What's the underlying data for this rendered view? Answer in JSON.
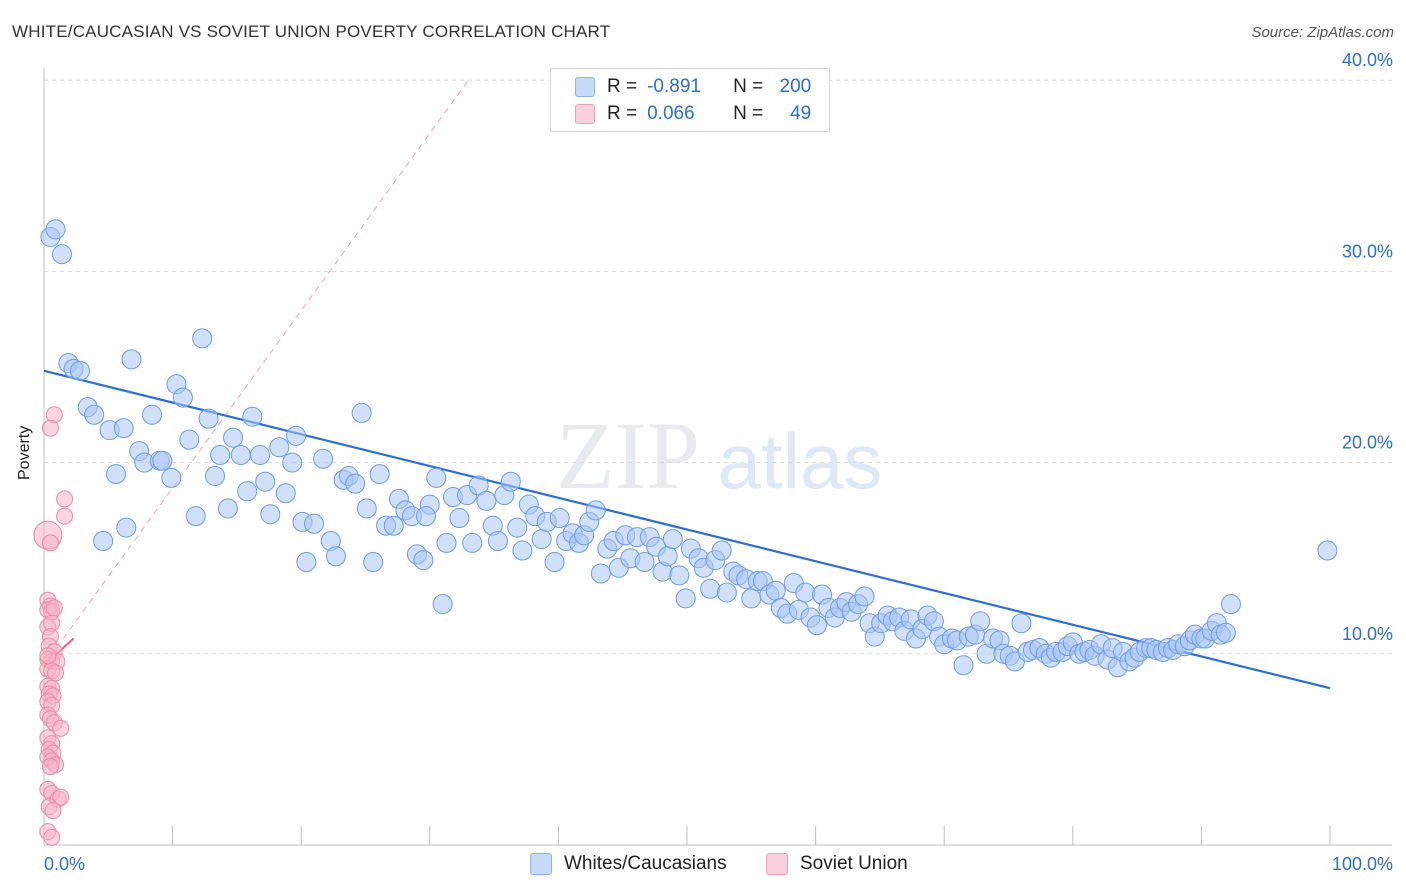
{
  "title": "WHITE/CAUCASIAN VS SOVIET UNION POVERTY CORRELATION CHART",
  "source": "Source: ZipAtlas.com",
  "watermark": {
    "left": "ZIP",
    "right": "atlas"
  },
  "legend": {
    "rows": [
      {
        "r_label": "R =",
        "r_value": "-0.891",
        "n_label": "N =",
        "n_value": "200",
        "color": "#a9c6f2"
      },
      {
        "r_label": "R =",
        "r_value": "0.066",
        "n_label": "N =",
        "n_value": "49",
        "color": "#f6b3c7"
      }
    ]
  },
  "bottom_legend": [
    {
      "label": "Whites/Caucasians",
      "color": "#a9c6f2"
    },
    {
      "label": "Soviet Union",
      "color": "#f6b3c7"
    }
  ],
  "chart_data": {
    "type": "scatter",
    "ylabel": "Poverty",
    "xlim": [
      0,
      100
    ],
    "ylim": [
      0,
      40
    ],
    "x_tick_labels": [
      "0.0%",
      "100.0%"
    ],
    "y_tick_labels": [
      {
        "value": 10,
        "label": "10.0%"
      },
      {
        "value": 20,
        "label": "20.0%"
      },
      {
        "value": 30,
        "label": "30.0%"
      },
      {
        "value": 40,
        "label": "40.0%"
      }
    ],
    "grid": true,
    "colors": {
      "blue": "#2f6fd0",
      "blue_fill": "#a9c6f2",
      "pink": "#ee5f8c",
      "pink_fill": "#f6b3c7",
      "tick_text": "#2f6fd0"
    },
    "series": [
      {
        "name": "Whites/Caucasians",
        "points": [
          [
            0.5,
            31.8
          ],
          [
            0.9,
            32.2
          ],
          [
            1.4,
            30.9
          ],
          [
            1.9,
            25.2
          ],
          [
            2.3,
            24.9
          ],
          [
            2.8,
            24.8
          ],
          [
            3.4,
            22.9
          ],
          [
            3.9,
            22.5
          ],
          [
            4.6,
            15.9
          ],
          [
            5.1,
            21.7
          ],
          [
            5.6,
            19.4
          ],
          [
            6.2,
            21.8
          ],
          [
            6.4,
            16.6
          ],
          [
            6.8,
            25.4
          ],
          [
            7.4,
            20.6
          ],
          [
            7.8,
            20.0
          ],
          [
            8.4,
            22.5
          ],
          [
            9.0,
            20.1
          ],
          [
            9.2,
            20.1
          ],
          [
            9.9,
            19.2
          ],
          [
            10.3,
            24.1
          ],
          [
            10.8,
            23.4
          ],
          [
            11.3,
            21.2
          ],
          [
            11.8,
            17.2
          ],
          [
            12.3,
            26.5
          ],
          [
            12.8,
            22.3
          ],
          [
            13.3,
            19.3
          ],
          [
            13.7,
            20.4
          ],
          [
            14.3,
            17.6
          ],
          [
            14.7,
            21.3
          ],
          [
            15.3,
            20.4
          ],
          [
            15.8,
            18.5
          ],
          [
            16.2,
            22.4
          ],
          [
            16.8,
            20.4
          ],
          [
            17.2,
            19.0
          ],
          [
            17.6,
            17.3
          ],
          [
            18.3,
            20.8
          ],
          [
            18.8,
            18.4
          ],
          [
            19.3,
            20.0
          ],
          [
            19.6,
            21.4
          ],
          [
            20.1,
            16.9
          ],
          [
            20.4,
            14.8
          ],
          [
            21.0,
            16.8
          ],
          [
            21.7,
            20.2
          ],
          [
            22.3,
            15.9
          ],
          [
            22.7,
            15.1
          ],
          [
            23.3,
            19.1
          ],
          [
            23.7,
            19.3
          ],
          [
            24.2,
            18.9
          ],
          [
            24.7,
            22.6
          ],
          [
            25.1,
            17.6
          ],
          [
            25.6,
            14.8
          ],
          [
            26.1,
            19.4
          ],
          [
            26.6,
            16.7
          ],
          [
            27.2,
            16.7
          ],
          [
            27.6,
            18.1
          ],
          [
            28.1,
            17.5
          ],
          [
            28.6,
            17.2
          ],
          [
            29.0,
            15.2
          ],
          [
            29.5,
            14.9
          ],
          [
            30.0,
            17.8
          ],
          [
            30.5,
            19.2
          ],
          [
            31.0,
            12.6
          ],
          [
            31.3,
            15.8
          ],
          [
            31.8,
            18.2
          ],
          [
            32.3,
            17.1
          ],
          [
            32.9,
            18.3
          ],
          [
            33.3,
            15.8
          ],
          [
            33.8,
            18.8
          ],
          [
            34.4,
            18.0
          ],
          [
            34.9,
            16.7
          ],
          [
            35.3,
            15.9
          ],
          [
            35.8,
            18.3
          ],
          [
            36.3,
            19.0
          ],
          [
            36.8,
            16.6
          ],
          [
            37.2,
            15.4
          ],
          [
            37.7,
            17.8
          ],
          [
            38.2,
            17.2
          ],
          [
            38.7,
            16.0
          ],
          [
            39.1,
            16.9
          ],
          [
            39.7,
            14.8
          ],
          [
            40.1,
            17.1
          ],
          [
            40.6,
            15.9
          ],
          [
            41.1,
            16.3
          ],
          [
            41.6,
            15.8
          ],
          [
            42.0,
            16.2
          ],
          [
            42.4,
            16.9
          ],
          [
            42.9,
            17.5
          ],
          [
            43.3,
            14.2
          ],
          [
            43.8,
            15.5
          ],
          [
            44.3,
            15.9
          ],
          [
            44.7,
            14.5
          ],
          [
            45.2,
            16.2
          ],
          [
            45.6,
            15.0
          ],
          [
            46.1,
            16.1
          ],
          [
            46.7,
            14.8
          ],
          [
            47.1,
            16.1
          ],
          [
            47.6,
            15.6
          ],
          [
            48.1,
            14.3
          ],
          [
            48.5,
            15.1
          ],
          [
            48.9,
            16.0
          ],
          [
            49.4,
            14.1
          ],
          [
            49.9,
            12.9
          ],
          [
            50.3,
            15.5
          ],
          [
            50.9,
            15.0
          ],
          [
            51.3,
            14.5
          ],
          [
            51.8,
            13.4
          ],
          [
            52.2,
            14.9
          ],
          [
            52.7,
            15.4
          ],
          [
            53.1,
            13.2
          ],
          [
            53.6,
            14.3
          ],
          [
            54.0,
            14.1
          ],
          [
            54.6,
            13.9
          ],
          [
            55.0,
            12.9
          ],
          [
            55.5,
            13.8
          ],
          [
            55.9,
            13.8
          ],
          [
            56.4,
            13.1
          ],
          [
            56.9,
            13.3
          ],
          [
            57.3,
            12.4
          ],
          [
            57.8,
            12.1
          ],
          [
            58.3,
            13.7
          ],
          [
            58.7,
            12.3
          ],
          [
            59.2,
            13.2
          ],
          [
            59.6,
            11.9
          ],
          [
            60.1,
            11.5
          ],
          [
            60.5,
            13.1
          ],
          [
            61.0,
            12.4
          ],
          [
            61.5,
            11.9
          ],
          [
            61.9,
            12.4
          ],
          [
            62.4,
            12.7
          ],
          [
            62.8,
            12.2
          ],
          [
            63.3,
            12.6
          ],
          [
            63.8,
            13.0
          ],
          [
            64.2,
            11.6
          ],
          [
            64.6,
            10.9
          ],
          [
            65.1,
            11.6
          ],
          [
            65.6,
            12.0
          ],
          [
            66.0,
            11.7
          ],
          [
            66.5,
            11.9
          ],
          [
            66.9,
            11.2
          ],
          [
            67.4,
            11.8
          ],
          [
            67.8,
            10.8
          ],
          [
            68.3,
            11.3
          ],
          [
            68.7,
            12.0
          ],
          [
            69.2,
            11.7
          ],
          [
            69.6,
            10.9
          ],
          [
            70.0,
            10.5
          ],
          [
            70.6,
            10.8
          ],
          [
            71.0,
            10.7
          ],
          [
            71.5,
            9.4
          ],
          [
            71.9,
            10.9
          ],
          [
            72.4,
            11.0
          ],
          [
            72.8,
            11.7
          ],
          [
            73.3,
            10.0
          ],
          [
            73.8,
            10.8
          ],
          [
            74.3,
            10.7
          ],
          [
            74.6,
            10.0
          ],
          [
            75.1,
            9.9
          ],
          [
            75.5,
            9.6
          ],
          [
            76.0,
            11.6
          ],
          [
            76.5,
            10.1
          ],
          [
            76.9,
            10.2
          ],
          [
            77.4,
            10.3
          ],
          [
            77.9,
            10.0
          ],
          [
            78.3,
            9.8
          ],
          [
            78.7,
            10.1
          ],
          [
            79.2,
            10.1
          ],
          [
            79.6,
            10.4
          ],
          [
            80.0,
            10.6
          ],
          [
            80.5,
            10.0
          ],
          [
            80.9,
            10.1
          ],
          [
            81.3,
            10.2
          ],
          [
            81.7,
            9.9
          ],
          [
            82.2,
            10.5
          ],
          [
            82.7,
            9.7
          ],
          [
            83.1,
            10.3
          ],
          [
            83.5,
            9.3
          ],
          [
            83.9,
            10.1
          ],
          [
            84.4,
            9.6
          ],
          [
            84.8,
            9.8
          ],
          [
            85.2,
            10.1
          ],
          [
            85.7,
            10.3
          ],
          [
            86.1,
            10.3
          ],
          [
            86.5,
            10.2
          ],
          [
            87.0,
            10.1
          ],
          [
            87.4,
            10.3
          ],
          [
            87.8,
            10.2
          ],
          [
            88.2,
            10.5
          ],
          [
            88.7,
            10.4
          ],
          [
            89.1,
            10.7
          ],
          [
            89.5,
            11.0
          ],
          [
            90.0,
            10.8
          ],
          [
            90.3,
            10.8
          ],
          [
            90.8,
            11.2
          ],
          [
            91.2,
            11.6
          ],
          [
            91.5,
            11.0
          ],
          [
            91.9,
            11.1
          ],
          [
            92.3,
            12.6
          ],
          [
            99.8,
            15.4
          ],
          [
            29.7,
            17.2
          ]
        ]
      },
      {
        "name": "Soviet Union",
        "points": [
          [
            0.8,
            22.5
          ],
          [
            0.5,
            21.8
          ],
          [
            1.6,
            18.1
          ],
          [
            1.6,
            17.2
          ],
          [
            0.3,
            16.2
          ],
          [
            0.5,
            15.8
          ],
          [
            0.3,
            12.8
          ],
          [
            0.5,
            12.5
          ],
          [
            0.3,
            12.3
          ],
          [
            0.6,
            12.2
          ],
          [
            0.8,
            12.4
          ],
          [
            0.3,
            11.4
          ],
          [
            0.6,
            11.6
          ],
          [
            0.5,
            10.9
          ],
          [
            0.4,
            10.4
          ],
          [
            0.8,
            10.1
          ],
          [
            0.3,
            9.7
          ],
          [
            0.6,
            9.6
          ],
          [
            1.0,
            9.6
          ],
          [
            0.3,
            9.2
          ],
          [
            0.6,
            9.1
          ],
          [
            0.9,
            9.0
          ],
          [
            0.3,
            8.3
          ],
          [
            0.6,
            8.2
          ],
          [
            0.4,
            7.9
          ],
          [
            0.7,
            7.8
          ],
          [
            0.3,
            7.5
          ],
          [
            0.6,
            7.3
          ],
          [
            0.3,
            6.8
          ],
          [
            0.5,
            6.6
          ],
          [
            0.8,
            6.4
          ],
          [
            1.3,
            6.1
          ],
          [
            0.3,
            5.6
          ],
          [
            0.6,
            5.3
          ],
          [
            0.4,
            5.0
          ],
          [
            0.7,
            4.8
          ],
          [
            0.3,
            4.6
          ],
          [
            0.6,
            4.4
          ],
          [
            0.9,
            4.2
          ],
          [
            0.5,
            4.1
          ],
          [
            0.3,
            2.9
          ],
          [
            0.6,
            2.7
          ],
          [
            1.1,
            2.4
          ],
          [
            1.3,
            2.5
          ],
          [
            0.4,
            2.0
          ],
          [
            0.7,
            1.8
          ],
          [
            0.3,
            0.7
          ],
          [
            0.6,
            0.4
          ],
          [
            0.3,
            9.9
          ]
        ]
      }
    ],
    "trend_lines": [
      {
        "series": "Whites/Caucasians",
        "x": [
          0,
          100
        ],
        "y": [
          24.8,
          8.2
        ]
      },
      {
        "series": "Soviet Union",
        "x": [
          0,
          2.3
        ],
        "y": [
          9.4,
          10.8
        ]
      },
      {
        "series": "Soviet Union",
        "style": "dashed",
        "x": [
          0,
          33
        ],
        "y": [
          9.4,
          40.0
        ]
      }
    ]
  }
}
